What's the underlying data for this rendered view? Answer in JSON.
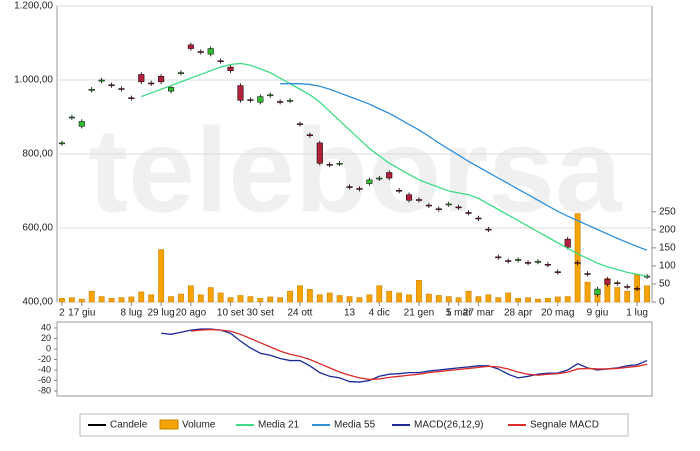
{
  "watermark": "teleborsa",
  "chart_data": [
    {
      "type": "candlestick",
      "categories": [
        "2",
        null,
        "17 giu",
        null,
        null,
        null,
        null,
        "8 lug",
        null,
        null,
        "29 lug",
        null,
        null,
        "20 ago",
        null,
        null,
        null,
        "10 set",
        null,
        null,
        "30 set",
        null,
        null,
        null,
        "24 ott",
        null,
        null,
        null,
        null,
        "13",
        null,
        null,
        "4 dic",
        null,
        null,
        null,
        "21 gen",
        null,
        null,
        "5",
        "1 mar",
        null,
        "27 mar",
        null,
        null,
        null,
        "28 apr",
        null,
        null,
        null,
        "20 mag",
        null,
        null,
        null,
        "9 giu",
        null,
        null,
        null,
        "1 lug",
        null
      ],
      "ylim": [
        400,
        1200
      ],
      "yticks": [
        {
          "value": 400,
          "label": "400,00"
        },
        {
          "value": 600,
          "label": "600,00"
        },
        {
          "value": 800,
          "label": "800,00"
        },
        {
          "value": 1000,
          "label": "1.000,00"
        },
        {
          "value": 1200,
          "label": "1.200,00"
        }
      ],
      "y2lim": [
        0,
        820
      ],
      "y2ticks": [
        0,
        50,
        100,
        150,
        200,
        250
      ],
      "grid": true,
      "series": [
        {
          "name": "Candele",
          "color": "#000000",
          "up_color": "#33bb33",
          "down_color": "#b0203a",
          "open": [
            828,
            898,
            875,
            972,
            997,
            987,
            977,
            952,
            1015,
            992,
            1010,
            970,
            1018,
            1095,
            1077,
            1070,
            1052,
            1035,
            985,
            947,
            940,
            958,
            942,
            943,
            882,
            852,
            830,
            772,
            773,
            712,
            707,
            720,
            733,
            750,
            702,
            690,
            677,
            662,
            652,
            663,
            657,
            642,
            627,
            597,
            522,
            512,
            513,
            507,
            508,
            502,
            482,
            570,
            507,
            477,
            420,
            462,
            452,
            442,
            437,
            468
          ],
          "high": [
            836,
            906,
            894,
            981,
            1006,
            993,
            983,
            958,
            1021,
            998,
            1016,
            986,
            1026,
            1101,
            1083,
            1091,
            1058,
            1041,
            991,
            953,
            961,
            966,
            948,
            951,
            888,
            858,
            836,
            778,
            781,
            718,
            713,
            736,
            741,
            756,
            708,
            696,
            683,
            668,
            658,
            671,
            663,
            648,
            633,
            603,
            528,
            518,
            521,
            513,
            516,
            508,
            488,
            576,
            513,
            483,
            441,
            468,
            458,
            448,
            443,
            476
          ],
          "low": [
            822,
            892,
            869,
            966,
            991,
            979,
            969,
            944,
            989,
            984,
            989,
            964,
            1012,
            1079,
            1069,
            1064,
            1044,
            1019,
            939,
            939,
            934,
            952,
            934,
            937,
            874,
            844,
            769,
            764,
            767,
            704,
            699,
            714,
            727,
            729,
            694,
            669,
            669,
            654,
            644,
            657,
            649,
            634,
            619,
            589,
            514,
            504,
            507,
            499,
            502,
            494,
            474,
            542,
            499,
            469,
            414,
            442,
            444,
            434,
            429,
            462
          ],
          "close": [
            830,
            900,
            888,
            975,
            1000,
            985,
            975,
            950,
            995,
            990,
            995,
            980,
            1020,
            1085,
            1075,
            1085,
            1050,
            1025,
            945,
            945,
            955,
            960,
            940,
            945,
            880,
            850,
            775,
            770,
            775,
            710,
            705,
            730,
            735,
            735,
            700,
            675,
            675,
            660,
            650,
            665,
            655,
            640,
            625,
            595,
            520,
            510,
            515,
            505,
            510,
            500,
            480,
            548,
            505,
            475,
            435,
            448,
            450,
            440,
            435,
            470
          ]
        },
        {
          "name": "Volume",
          "color": "#f5a300",
          "axis": "y2",
          "values": [
            10,
            12,
            8,
            30,
            15,
            10,
            12,
            14,
            28,
            20,
            145,
            15,
            22,
            45,
            20,
            40,
            25,
            12,
            18,
            15,
            10,
            14,
            12,
            30,
            45,
            35,
            20,
            25,
            18,
            15,
            12,
            20,
            45,
            30,
            25,
            20,
            60,
            22,
            18,
            15,
            12,
            30,
            15,
            20,
            12,
            25,
            10,
            12,
            8,
            10,
            14,
            15,
            245,
            55,
            25,
            65,
            40,
            30,
            75,
            45
          ]
        },
        {
          "name": "Media 21",
          "color": "#3ddc84",
          "values": [
            null,
            null,
            null,
            null,
            null,
            null,
            null,
            null,
            955,
            965,
            975,
            985,
            995,
            1005,
            1015,
            1025,
            1035,
            1042,
            1045,
            1040,
            1030,
            1020,
            1005,
            990,
            975,
            960,
            940,
            915,
            890,
            865,
            840,
            815,
            795,
            775,
            760,
            745,
            730,
            720,
            710,
            700,
            695,
            690,
            680,
            665,
            650,
            635,
            620,
            605,
            590,
            575,
            560,
            545,
            530,
            518,
            505,
            495,
            488,
            480,
            475,
            470
          ]
        },
        {
          "name": "Media 55",
          "color": "#2f8fdd",
          "values": [
            null,
            null,
            null,
            null,
            null,
            null,
            null,
            null,
            null,
            null,
            null,
            null,
            null,
            null,
            null,
            null,
            null,
            null,
            null,
            null,
            null,
            null,
            990,
            990,
            990,
            988,
            983,
            975,
            965,
            955,
            945,
            935,
            922,
            910,
            895,
            880,
            865,
            848,
            830,
            813,
            797,
            780,
            765,
            750,
            735,
            720,
            705,
            690,
            675,
            660,
            645,
            632,
            620,
            608,
            596,
            584,
            572,
            561,
            550,
            540
          ]
        }
      ]
    },
    {
      "type": "line",
      "ylim": [
        -80,
        40
      ],
      "yticks": [
        -80,
        -60,
        -40,
        -20,
        0,
        20,
        40
      ],
      "series": [
        {
          "name": "MACD(26,12,9)",
          "color": "#1a2a9a",
          "values": [
            null,
            null,
            null,
            null,
            null,
            null,
            null,
            null,
            null,
            null,
            30,
            28,
            32,
            36,
            38,
            38,
            36,
            30,
            15,
            2,
            -8,
            -12,
            -18,
            -22,
            -22,
            -32,
            -45,
            -52,
            -55,
            -62,
            -63,
            -60,
            -52,
            -48,
            -47,
            -45,
            -45,
            -42,
            -40,
            -38,
            -36,
            -34,
            -32,
            -32,
            -38,
            -48,
            -55,
            -52,
            -48,
            -46,
            -46,
            -40,
            -28,
            -36,
            -40,
            -38,
            -36,
            -32,
            -30,
            -22
          ]
        },
        {
          "name": "Segnale MACD",
          "color": "#dd2a2a",
          "values": [
            null,
            null,
            null,
            null,
            null,
            null,
            null,
            null,
            null,
            null,
            null,
            null,
            null,
            34,
            36,
            37,
            36,
            34,
            28,
            20,
            12,
            4,
            -4,
            -10,
            -14,
            -20,
            -28,
            -36,
            -44,
            -50,
            -55,
            -58,
            -57,
            -54,
            -52,
            -50,
            -48,
            -45,
            -43,
            -41,
            -39,
            -37,
            -35,
            -33,
            -34,
            -38,
            -44,
            -48,
            -50,
            -48,
            -47,
            -44,
            -38,
            -37,
            -38,
            -38,
            -37,
            -35,
            -33,
            -29
          ]
        }
      ]
    }
  ]
}
